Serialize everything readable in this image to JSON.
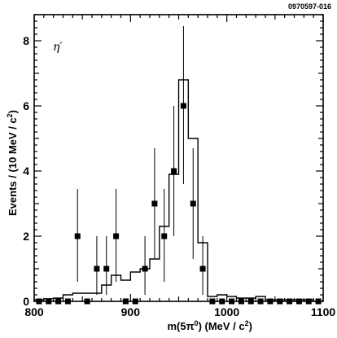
{
  "figure_id": "0970597-016",
  "chart_data": {
    "type": "scatter",
    "annotation": "η′",
    "xlabel_main": "m(5π",
    "xlabel_sup": "0",
    "xlabel_rest": ") (MeV / c",
    "xlabel_sup2": "2",
    "xlabel_end": ")",
    "ylabel_main": "Events / (10 MeV / c",
    "ylabel_sup": "2",
    "ylabel_end": ")",
    "xlim": [
      800,
      1100
    ],
    "ylim": [
      0,
      8.8
    ],
    "xticks": [
      800,
      900,
      1000,
      1100
    ],
    "yticks": [
      0,
      2,
      4,
      6,
      8
    ],
    "xtick_labels": [
      "800",
      "900",
      "1000",
      "1100"
    ],
    "ytick_labels": [
      "0",
      "2",
      "4",
      "6",
      "8"
    ],
    "data": {
      "x": [
        805,
        815,
        825,
        835,
        845,
        855,
        865,
        875,
        885,
        895,
        905,
        915,
        925,
        935,
        945,
        955,
        965,
        975,
        985,
        995,
        1005,
        1015,
        1025,
        1035,
        1045,
        1055,
        1065,
        1075,
        1085,
        1095
      ],
      "y": [
        0,
        0,
        0,
        0,
        2,
        0,
        1,
        1,
        2,
        0,
        0,
        1,
        3,
        2,
        4,
        6,
        3,
        1,
        0,
        0,
        0,
        0,
        0,
        0,
        0,
        0,
        0,
        0,
        0,
        0
      ],
      "err_low": [
        0,
        0,
        0,
        0,
        1.4,
        0,
        0.8,
        0.8,
        1.4,
        0,
        0,
        0.8,
        1.7,
        1.4,
        2.0,
        2.4,
        1.7,
        0.8,
        0,
        0,
        0,
        0,
        0,
        0,
        0,
        0,
        0,
        0,
        0,
        0
      ],
      "err_high": [
        0,
        0,
        0,
        0,
        1.45,
        0,
        1.0,
        1.0,
        1.45,
        0,
        0,
        1.0,
        1.7,
        1.45,
        2.0,
        2.45,
        1.7,
        1.0,
        0,
        0,
        0,
        0,
        0,
        0,
        0,
        0,
        0,
        0,
        0,
        0
      ]
    },
    "simulation": {
      "edges": [
        800,
        810,
        820,
        830,
        840,
        850,
        860,
        870,
        880,
        890,
        900,
        910,
        920,
        930,
        940,
        950,
        960,
        970,
        980,
        990,
        1000,
        1010,
        1020,
        1030,
        1040,
        1050,
        1060,
        1070,
        1080,
        1090,
        1100
      ],
      "values": [
        0.05,
        0.08,
        0.1,
        0.2,
        0.25,
        0.25,
        0.25,
        0.5,
        0.8,
        0.65,
        0.9,
        1.0,
        1.3,
        2.3,
        3.9,
        6.8,
        5.0,
        1.8,
        0.15,
        0.2,
        0.15,
        0.1,
        0.1,
        0.15,
        0.05,
        0.05,
        0.05,
        0.05,
        0.05,
        0.0
      ]
    }
  }
}
